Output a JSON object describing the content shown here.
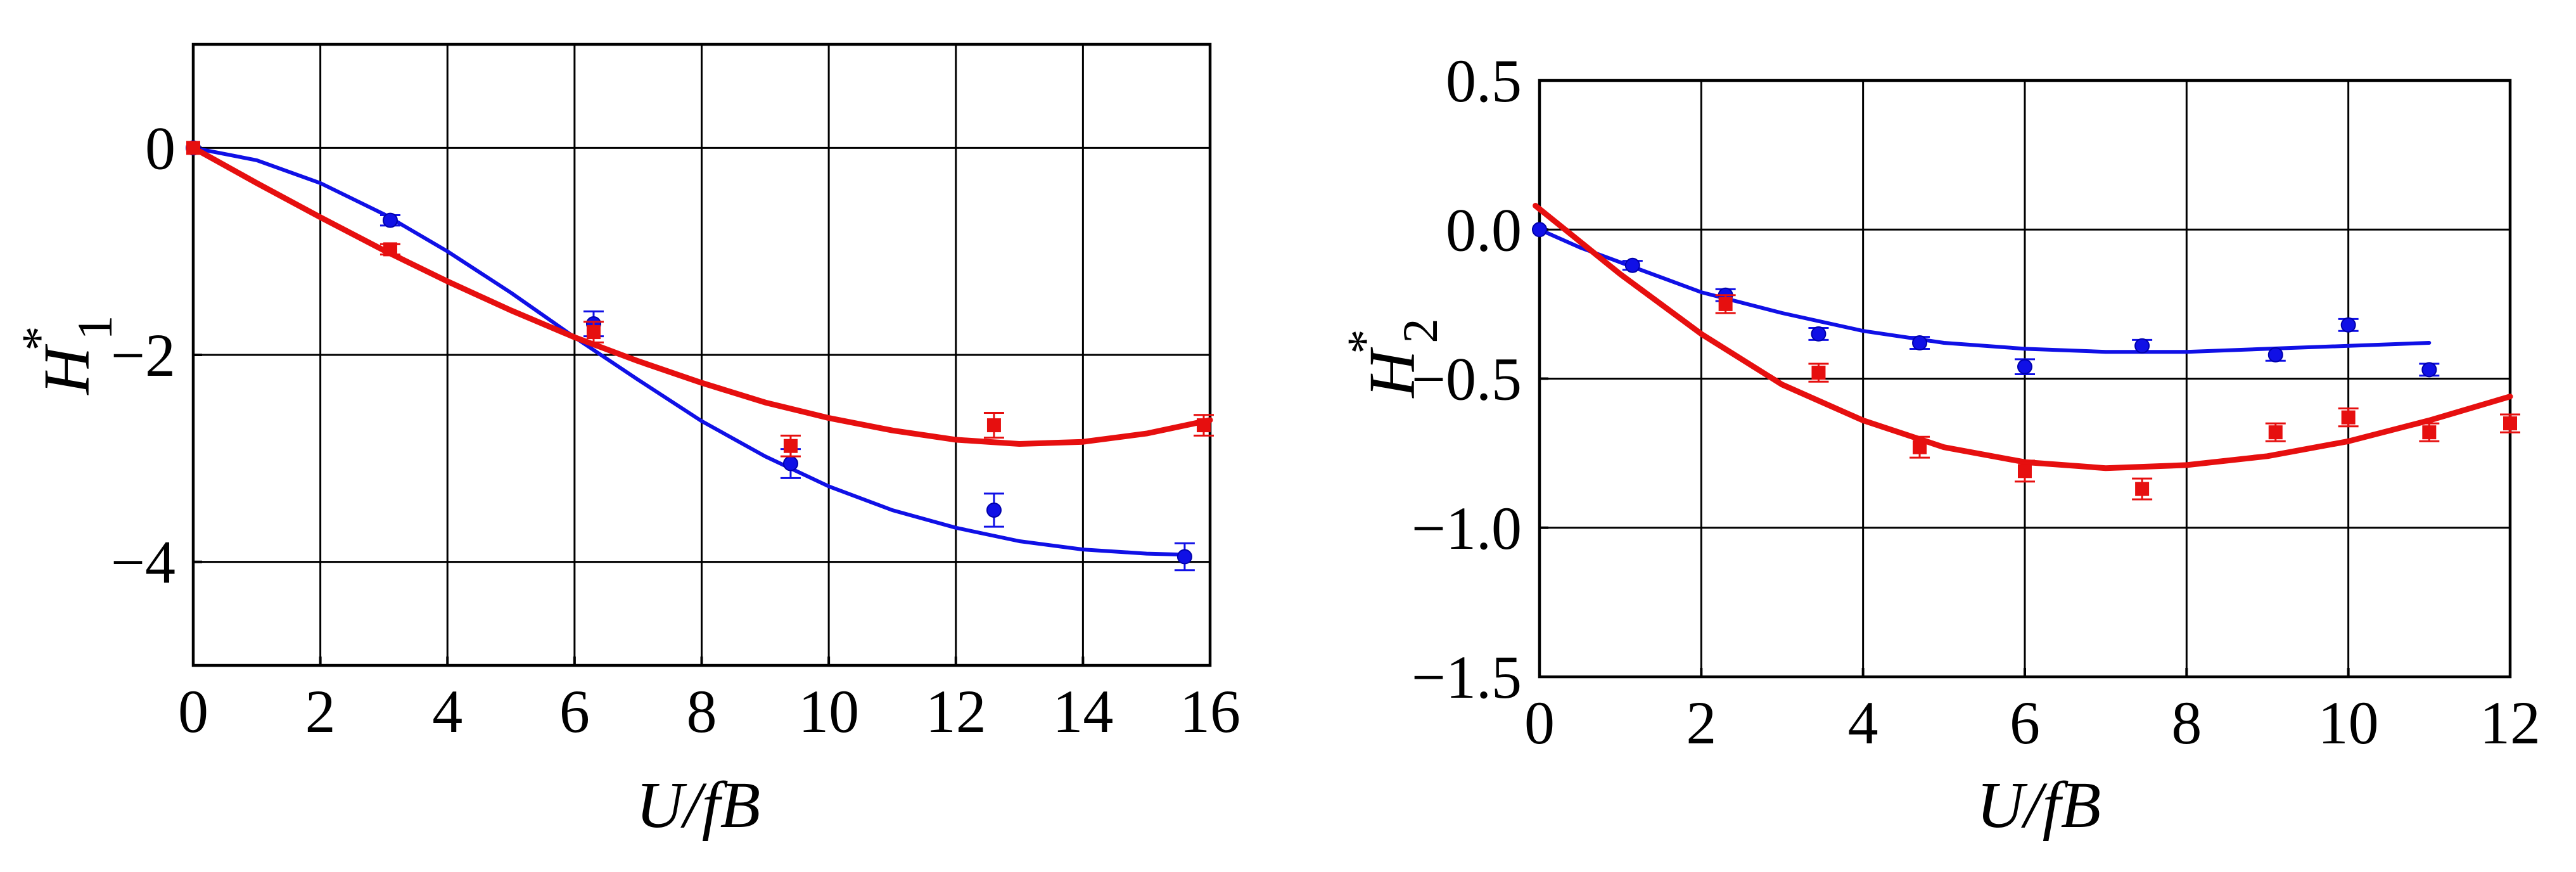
{
  "colors": {
    "series_blue": "#1010e6",
    "series_red": "#e60f0f",
    "grid": "#000000"
  },
  "chart_data": [
    {
      "type": "scatter",
      "title": "",
      "xlabel": "U/fB",
      "ylabel": {
        "base": "H",
        "sup": "*",
        "sub": "1"
      },
      "xlim": [
        0,
        16
      ],
      "ylim": [
        -5,
        1
      ],
      "xticks": [
        0,
        2,
        4,
        6,
        8,
        10,
        12,
        14,
        16
      ],
      "xtick_labels": [
        "0",
        "2",
        "4",
        "6",
        "8",
        "10",
        "12",
        "14",
        "16"
      ],
      "yticks": [
        -4,
        -2,
        0
      ],
      "ytick_labels": [
        "−4",
        "−2",
        "0"
      ],
      "grid": true,
      "series": [
        {
          "color": "#1010e6",
          "marker": "circle",
          "points": [
            {
              "x": 0,
              "y": 0,
              "err": 0
            },
            {
              "x": 3.1,
              "y": -0.7,
              "err": 0.05
            },
            {
              "x": 6.3,
              "y": -1.7,
              "err": 0.12
            },
            {
              "x": 9.4,
              "y": -3.05,
              "err": 0.14
            },
            {
              "x": 12.6,
              "y": -3.5,
              "err": 0.16
            },
            {
              "x": 15.6,
              "y": -3.95,
              "err": 0.13
            }
          ],
          "fit": [
            [
              0,
              0
            ],
            [
              1,
              -0.12
            ],
            [
              2,
              -0.34
            ],
            [
              3,
              -0.64
            ],
            [
              4,
              -1.0
            ],
            [
              5,
              -1.4
            ],
            [
              6,
              -1.83
            ],
            [
              7,
              -2.24
            ],
            [
              8,
              -2.64
            ],
            [
              9,
              -2.98
            ],
            [
              10,
              -3.27
            ],
            [
              11,
              -3.5
            ],
            [
              12,
              -3.67
            ],
            [
              13,
              -3.8
            ],
            [
              14,
              -3.88
            ],
            [
              15,
              -3.92
            ],
            [
              15.6,
              -3.93
            ]
          ]
        },
        {
          "color": "#e60f0f",
          "marker": "square",
          "points": [
            {
              "x": 0,
              "y": 0,
              "err": 0
            },
            {
              "x": 3.1,
              "y": -0.98,
              "err": 0.05
            },
            {
              "x": 6.3,
              "y": -1.78,
              "err": 0.1
            },
            {
              "x": 9.4,
              "y": -2.88,
              "err": 0.1
            },
            {
              "x": 12.6,
              "y": -2.68,
              "err": 0.12
            },
            {
              "x": 15.9,
              "y": -2.68,
              "err": 0.1
            }
          ],
          "fit": [
            [
              0,
              0
            ],
            [
              1,
              -0.34
            ],
            [
              2,
              -0.67
            ],
            [
              3,
              -0.99
            ],
            [
              4,
              -1.29
            ],
            [
              5,
              -1.57
            ],
            [
              6,
              -1.83
            ],
            [
              7,
              -2.06
            ],
            [
              8,
              -2.27
            ],
            [
              9,
              -2.46
            ],
            [
              10,
              -2.61
            ],
            [
              11,
              -2.73
            ],
            [
              12,
              -2.82
            ],
            [
              13,
              -2.86
            ],
            [
              14,
              -2.84
            ],
            [
              15,
              -2.76
            ],
            [
              16,
              -2.63
            ]
          ]
        }
      ]
    },
    {
      "type": "scatter",
      "title": "",
      "xlabel": "U/fB",
      "ylabel": {
        "base": "H",
        "sup": "*",
        "sub": "2"
      },
      "xlim": [
        0,
        12
      ],
      "ylim": [
        -1.5,
        0.5
      ],
      "xticks": [
        0,
        2,
        4,
        6,
        8,
        10,
        12
      ],
      "xtick_labels": [
        "0",
        "2",
        "4",
        "6",
        "8",
        "10",
        "12"
      ],
      "yticks": [
        -1.5,
        -1.0,
        -0.5,
        0.0,
        0.5
      ],
      "ytick_labels": [
        "−1.5",
        "−1.0",
        "−0.5",
        "0.0",
        "0.5"
      ],
      "grid": true,
      "series": [
        {
          "color": "#1010e6",
          "marker": "circle",
          "points": [
            {
              "x": 0,
              "y": 0,
              "err": 0
            },
            {
              "x": 1.15,
              "y": -0.12,
              "err": 0.015
            },
            {
              "x": 2.3,
              "y": -0.22,
              "err": 0.02
            },
            {
              "x": 3.45,
              "y": -0.35,
              "err": 0.02
            },
            {
              "x": 4.7,
              "y": -0.38,
              "err": 0.02
            },
            {
              "x": 6.0,
              "y": -0.46,
              "err": 0.025
            },
            {
              "x": 7.45,
              "y": -0.39,
              "err": 0.02
            },
            {
              "x": 9.1,
              "y": -0.42,
              "err": 0.02
            },
            {
              "x": 10.0,
              "y": -0.32,
              "err": 0.02
            },
            {
              "x": 11.0,
              "y": -0.47,
              "err": 0.02
            }
          ],
          "fit": [
            [
              0,
              0
            ],
            [
              0.5,
              -0.06
            ],
            [
              1,
              -0.11
            ],
            [
              1.5,
              -0.16
            ],
            [
              2,
              -0.21
            ],
            [
              3,
              -0.28
            ],
            [
              4,
              -0.34
            ],
            [
              5,
              -0.38
            ],
            [
              6,
              -0.4
            ],
            [
              7,
              -0.41
            ],
            [
              8,
              -0.41
            ],
            [
              9,
              -0.4
            ],
            [
              10,
              -0.39
            ],
            [
              11,
              -0.38
            ]
          ]
        },
        {
          "color": "#e60f0f",
          "marker": "square",
          "points": [
            {
              "x": 2.3,
              "y": -0.25,
              "err": 0.03
            },
            {
              "x": 3.45,
              "y": -0.48,
              "err": 0.03
            },
            {
              "x": 4.7,
              "y": -0.73,
              "err": 0.035
            },
            {
              "x": 6.0,
              "y": -0.81,
              "err": 0.035
            },
            {
              "x": 7.45,
              "y": -0.87,
              "err": 0.035
            },
            {
              "x": 9.1,
              "y": -0.68,
              "err": 0.03
            },
            {
              "x": 10.0,
              "y": -0.63,
              "err": 0.03
            },
            {
              "x": 11.0,
              "y": -0.68,
              "err": 0.03
            },
            {
              "x": 12.0,
              "y": -0.65,
              "err": 0.03
            }
          ],
          "fit": [
            [
              -0.05,
              0.08
            ],
            [
              0.5,
              -0.04
            ],
            [
              1,
              -0.15
            ],
            [
              2,
              -0.35
            ],
            [
              3,
              -0.52
            ],
            [
              4,
              -0.64
            ],
            [
              5,
              -0.73
            ],
            [
              6,
              -0.78
            ],
            [
              7,
              -0.8
            ],
            [
              8,
              -0.79
            ],
            [
              9,
              -0.76
            ],
            [
              10,
              -0.71
            ],
            [
              11,
              -0.64
            ],
            [
              12,
              -0.56
            ]
          ]
        }
      ]
    }
  ]
}
